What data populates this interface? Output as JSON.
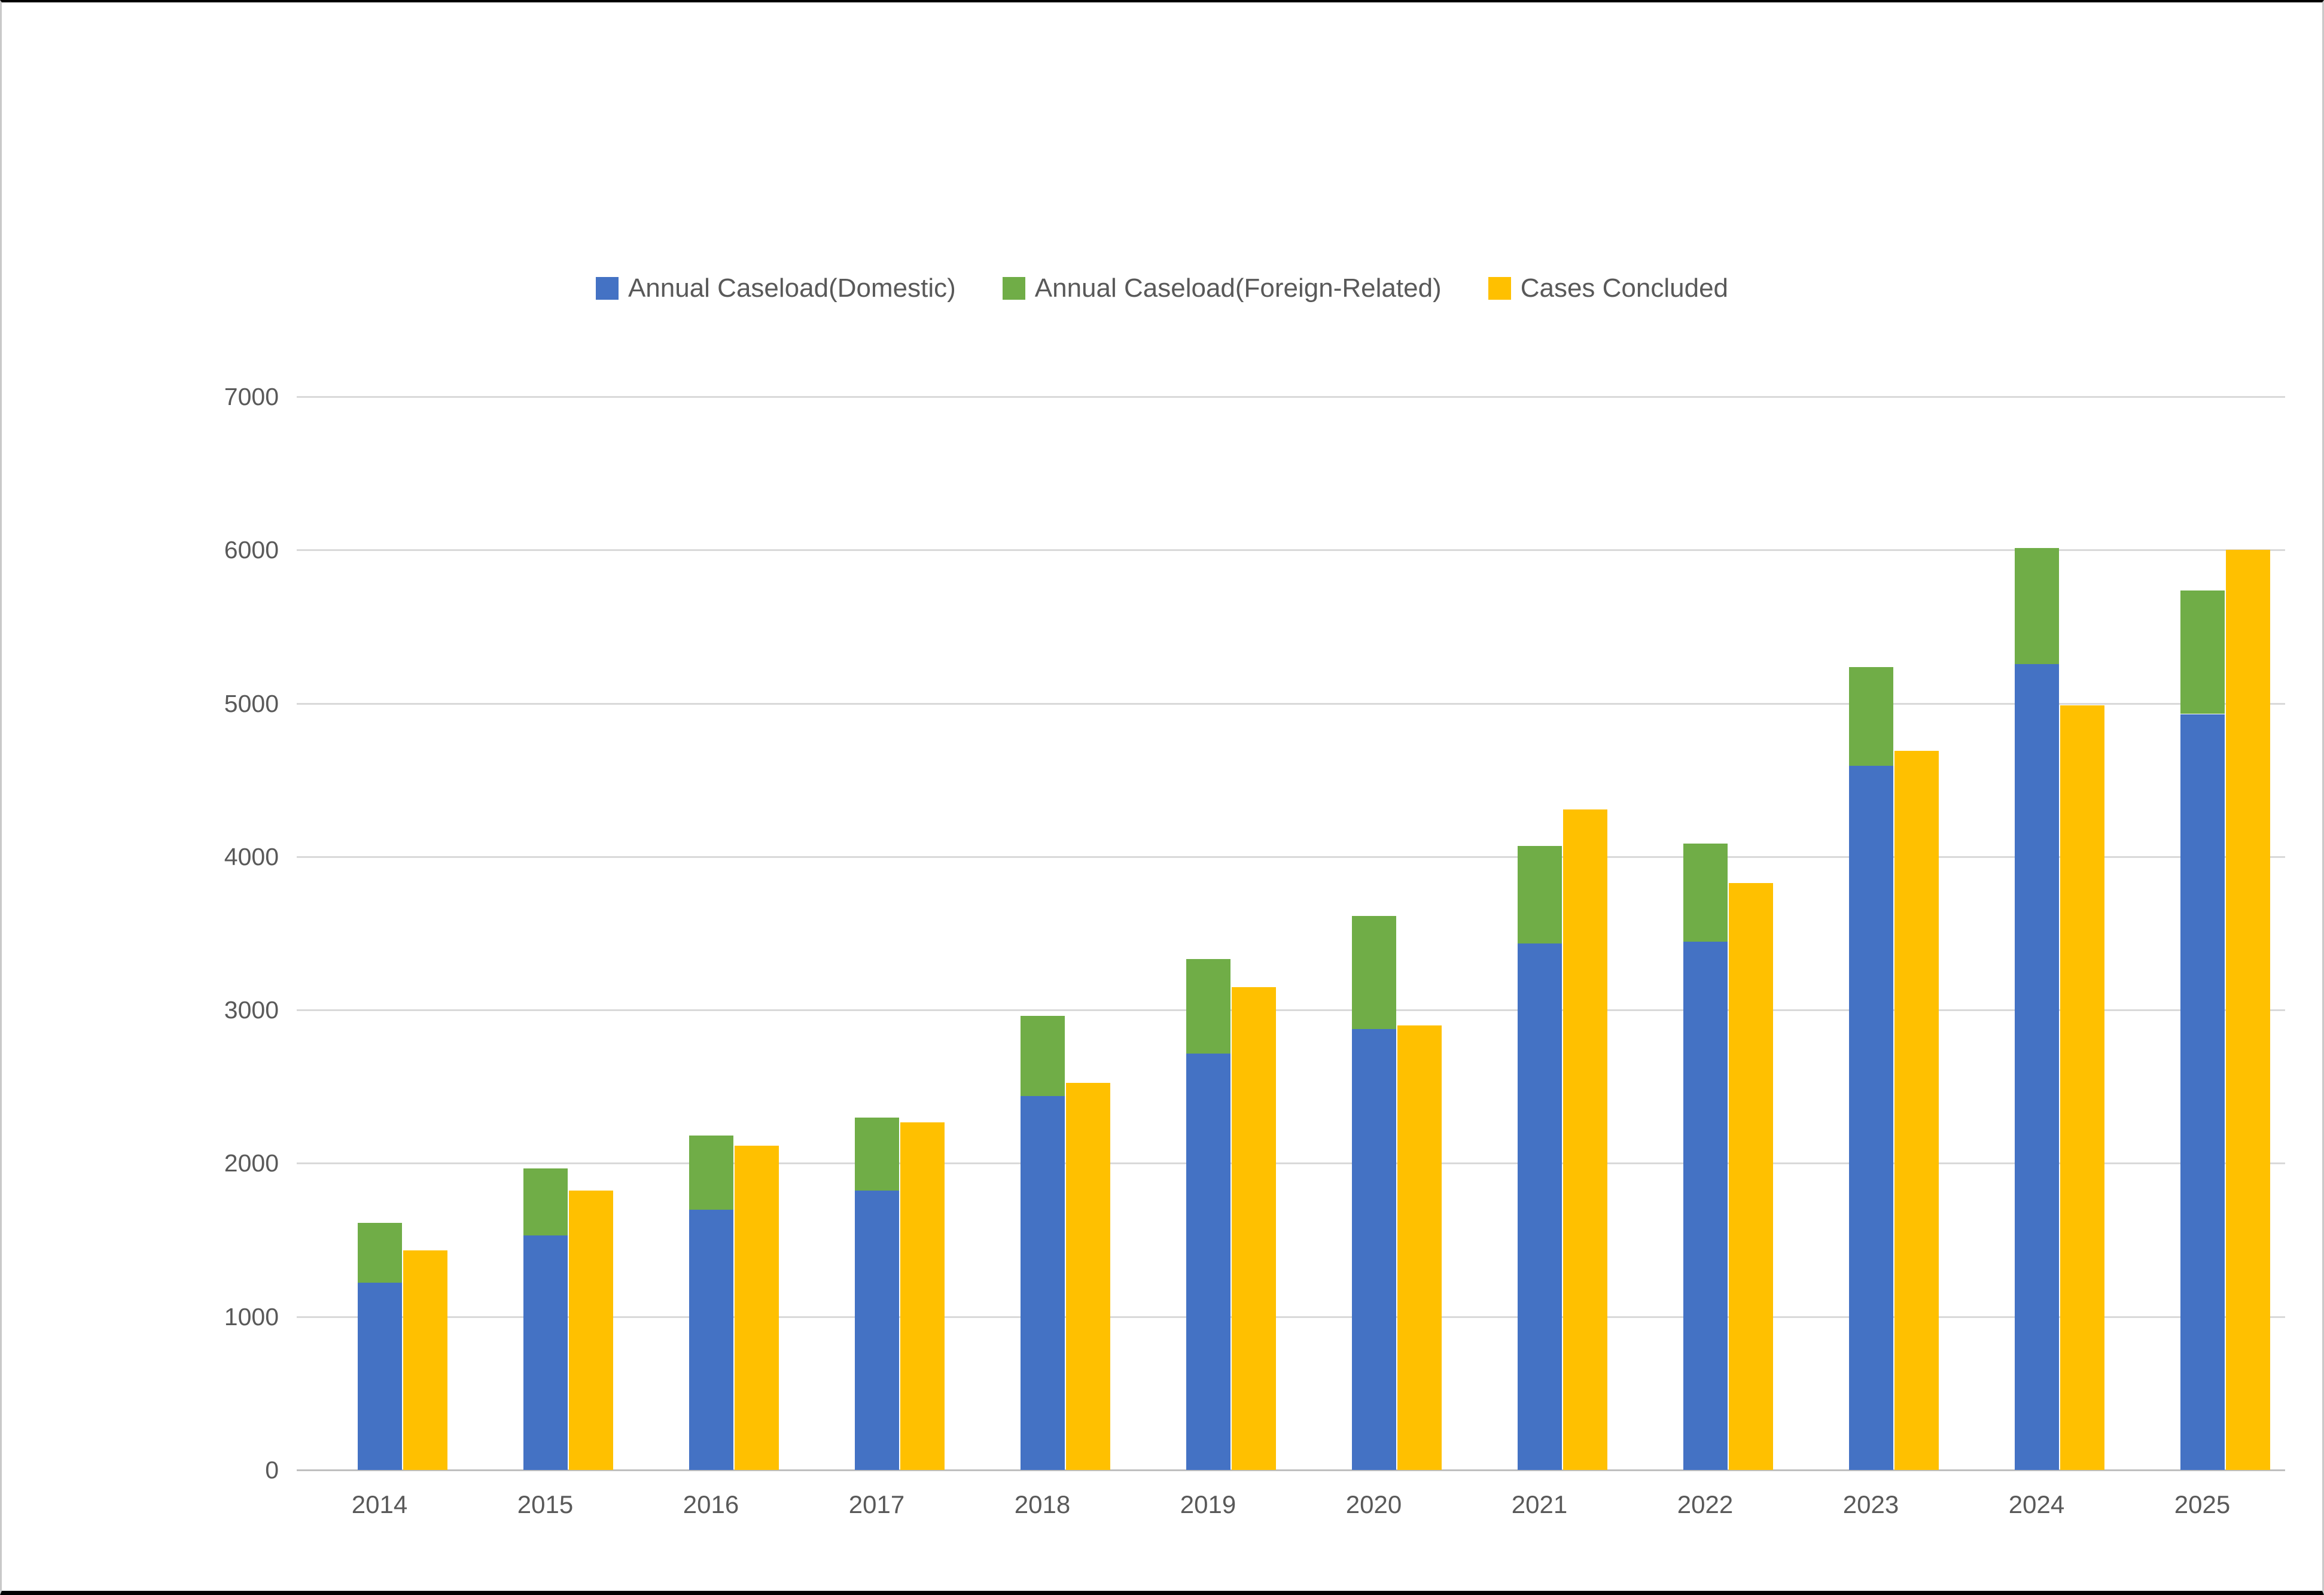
{
  "chart_data": {
    "type": "bar",
    "categories": [
      "2014",
      "2015",
      "2016",
      "2017",
      "2018",
      "2019",
      "2020",
      "2021",
      "2022",
      "2023",
      "2024",
      "2025"
    ],
    "series": [
      {
        "name": "Annual Caseload(Domestic)",
        "color": "#4472C4",
        "stack": "caseload",
        "values": [
          1223,
          1531,
          1698,
          1822,
          2440,
          2716,
          2876,
          3435,
          3444,
          4592,
          5255,
          4930
        ]
      },
      {
        "name": "Annual Caseload(Foreign-Related)",
        "color": "#70AD47",
        "stack": "caseload",
        "values": [
          387,
          437,
          483,
          476,
          522,
          617,
          739,
          636,
          642,
          645,
          758,
          805
        ]
      },
      {
        "name": "Cases Concluded",
        "color": "#FFC000",
        "stack": null,
        "values": [
          1432,
          1821,
          2113,
          2268,
          2524,
          3148,
          2899,
          4306,
          3827,
          4690,
          4987,
          6000
        ]
      }
    ],
    "ylim": [
      0,
      7000
    ],
    "ytick_step": 1000,
    "yticks": [
      "0",
      "1000",
      "2000",
      "3000",
      "4000",
      "5000",
      "6000",
      "7000"
    ],
    "grid": true,
    "legend_position": "top",
    "colors": {
      "gridline": "#D9D9D9",
      "axis_line": "#BFBFBF",
      "tick_text": "#595959",
      "background": "#FFFFFF"
    }
  }
}
